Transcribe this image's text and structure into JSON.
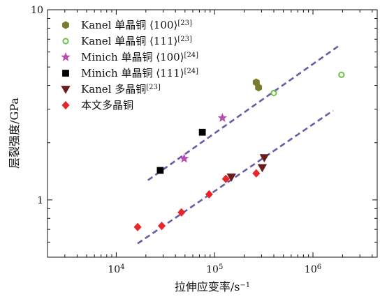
{
  "chart_data": {
    "type": "scatter",
    "title": "",
    "xlabel": "拉伸应变率/s",
    "xlabel_exp": "−1",
    "ylabel": "层裂强度/GPa",
    "xscale": "log",
    "yscale": "log",
    "xlim": [
      2000,
      4500000
    ],
    "ylim": [
      0.5,
      10
    ],
    "x_ticks": [
      {
        "value": 10000,
        "base": "10",
        "exp": "4"
      },
      {
        "value": 100000,
        "base": "10",
        "exp": "5"
      },
      {
        "value": 1000000,
        "base": "10",
        "exp": "6"
      }
    ],
    "y_ticks": [
      {
        "value": 1,
        "label": "1"
      },
      {
        "value": 10,
        "label": "10"
      }
    ],
    "legend_position": "top-left",
    "series": [
      {
        "name": "Kanel 单晶铜 ⟨100⟩",
        "ref": "[23]",
        "marker": "hexagon",
        "color": "#7a7a30",
        "filled": true,
        "points": [
          [
            265000,
            4.15
          ],
          [
            280000,
            3.9
          ]
        ]
      },
      {
        "name": "Kanel 单晶铜 ⟨111⟩",
        "ref": "[23]",
        "marker": "circle",
        "color": "#6cc24a",
        "filled": false,
        "points": [
          [
            400000,
            3.65
          ],
          [
            1950000,
            4.55
          ]
        ]
      },
      {
        "name": "Minich 单晶铜 ⟨100⟩",
        "ref": "[24]",
        "marker": "star",
        "color": "#b84fb0",
        "filled": true,
        "points": [
          [
            49000,
            1.65
          ],
          [
            120000,
            2.7
          ]
        ]
      },
      {
        "name": "Minich 单晶铜 ⟨111⟩",
        "ref": "[24]",
        "marker": "square",
        "color": "#000000",
        "filled": true,
        "points": [
          [
            28000,
            1.43
          ],
          [
            75000,
            2.27
          ]
        ]
      },
      {
        "name": "Kanel 多晶铜",
        "ref": "[23]",
        "marker": "triangle-down",
        "color": "#6b1d1d",
        "filled": true,
        "points": [
          [
            148000,
            1.32
          ],
          [
            305000,
            1.48
          ],
          [
            320000,
            1.67
          ]
        ]
      },
      {
        "name": "本文多晶铜",
        "ref": "",
        "marker": "diamond",
        "color": "#e8262a",
        "filled": true,
        "points": [
          [
            16500,
            0.72
          ],
          [
            29000,
            0.73
          ],
          [
            46000,
            0.86
          ],
          [
            88000,
            1.07
          ],
          [
            130000,
            1.29
          ],
          [
            265000,
            1.38
          ]
        ]
      }
    ],
    "fit_lines": [
      {
        "color": "#6a5aa8",
        "dash": true,
        "points": [
          [
            21000,
            1.27
          ],
          [
            1900000,
            6.55
          ]
        ]
      },
      {
        "color": "#6a5aa8",
        "dash": true,
        "points": [
          [
            16500,
            0.59
          ],
          [
            1600000,
            2.95
          ]
        ]
      }
    ]
  }
}
